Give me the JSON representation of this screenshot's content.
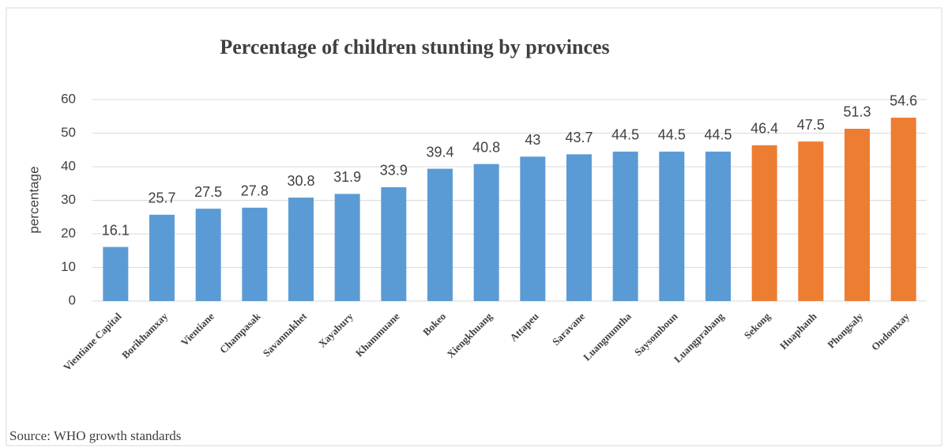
{
  "chart_data": {
    "type": "bar",
    "title": "Percentage of children stunting by provinces",
    "y_label": "percentage",
    "source": "Source: WHO growth standards",
    "categories": [
      "Vientiane Capital",
      "Borikhamxay",
      "Vientiane",
      "Champasak",
      "Savannakhet",
      "Xayabury",
      "Khammuane",
      "Bokeo",
      "Xiengkhuang",
      "Attapeu",
      "Saravane",
      "Luangnumtha",
      "Saysomboun",
      "Luangprabang",
      "Sekong",
      "Huaphanh",
      "Phongsaly",
      "Oudomxay"
    ],
    "values": [
      16.1,
      25.7,
      27.5,
      27.8,
      30.8,
      31.9,
      33.9,
      39.4,
      40.8,
      43,
      43.7,
      44.5,
      44.5,
      44.5,
      46.4,
      47.5,
      51.3,
      54.6
    ],
    "colors": [
      "#5b9bd5",
      "#5b9bd5",
      "#5b9bd5",
      "#5b9bd5",
      "#5b9bd5",
      "#5b9bd5",
      "#5b9bd5",
      "#5b9bd5",
      "#5b9bd5",
      "#5b9bd5",
      "#5b9bd5",
      "#5b9bd5",
      "#5b9bd5",
      "#5b9bd5",
      "#ed7d31",
      "#ed7d31",
      "#ed7d31",
      "#ed7d31"
    ],
    "ylim": [
      0,
      60
    ],
    "yticks": [
      0,
      10,
      20,
      30,
      40,
      50,
      60
    ],
    "grid": true
  }
}
